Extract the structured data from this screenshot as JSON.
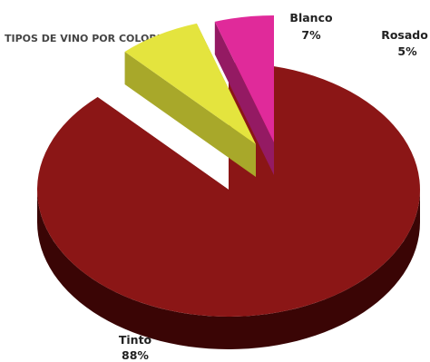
{
  "chart_data": {
    "type": "pie",
    "title": "TIPOS DE VINO POR COLORES",
    "slices": [
      {
        "name": "Tinto",
        "label": "Tinto",
        "pct_label": "88%",
        "value": 88,
        "top_color": "#8b1616",
        "side_color": "#3a0505",
        "inner_color": "#5a0b0b"
      },
      {
        "name": "Blanco",
        "label": "Blanco",
        "pct_label": "7%",
        "value": 7,
        "top_color": "#e4e43e",
        "side_color": "#8f8f22",
        "inner_color": "#a8a82a"
      },
      {
        "name": "Rosado",
        "label": "Rosado",
        "pct_label": "5%",
        "value": 5,
        "top_color": "#e02a9a",
        "side_color": "#7a1451",
        "inner_color": "#941a63"
      }
    ]
  }
}
